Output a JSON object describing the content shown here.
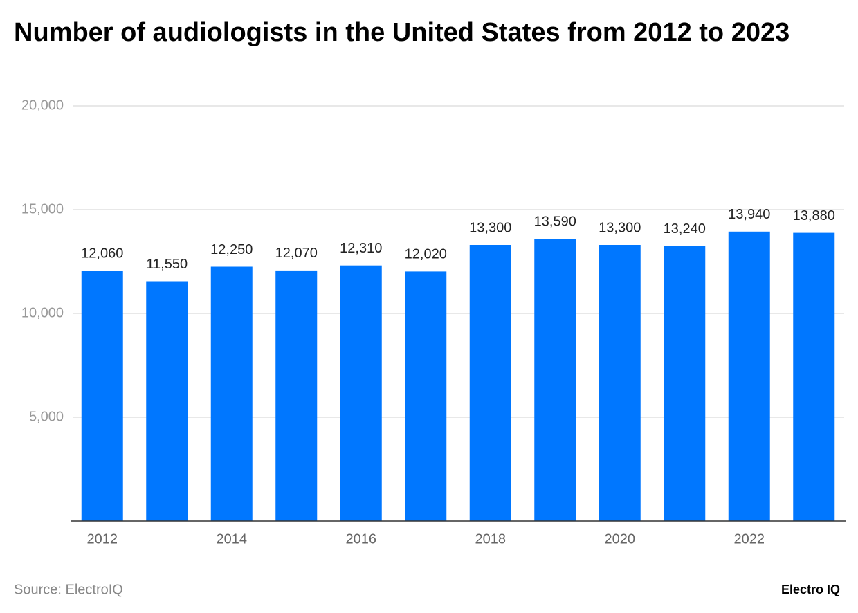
{
  "chart_data": {
    "type": "bar",
    "title": "Number of audiologists in the United States from 2012 to 2023",
    "categories": [
      "2012",
      null,
      "2014",
      null,
      "2016",
      null,
      "2018",
      null,
      "2020",
      null,
      "2022",
      null
    ],
    "values": [
      12060,
      11550,
      12250,
      12070,
      12310,
      12020,
      13300,
      13590,
      13300,
      13240,
      13940,
      13880
    ],
    "value_labels": [
      "12,060",
      "11,550",
      "12,250",
      "12,070",
      "12,310",
      "12,020",
      "13,300",
      "13,590",
      "13,300",
      "13,240",
      "13,940",
      "13,880"
    ],
    "color": "#0077ff",
    "ylim": [
      0,
      20000
    ],
    "yticks": [
      {
        "value": 5000,
        "label": "5,000"
      },
      {
        "value": 10000,
        "label": "10,000"
      },
      {
        "value": 15000,
        "label": "15,000"
      },
      {
        "value": 20000,
        "label": "20,000"
      }
    ],
    "grid": true,
    "source": "Source: ElectroIQ",
    "brand": "Electro IQ"
  }
}
